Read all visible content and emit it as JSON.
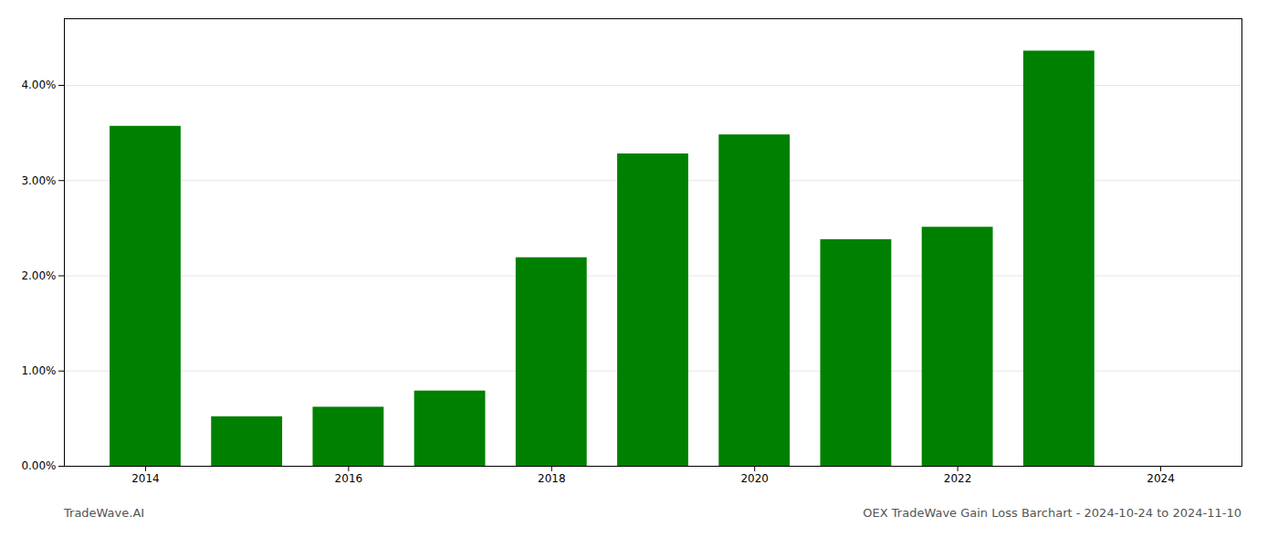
{
  "chart_data": {
    "type": "bar",
    "title": "OEX TradeWave Gain Loss Barchart - 2024-10-24 to 2024-11-10",
    "annotations": [
      "TradeWave.AI"
    ],
    "x": [
      2014,
      2015,
      2016,
      2017,
      2018,
      2019,
      2020,
      2021,
      2022,
      2023
    ],
    "values": [
      0.0357,
      0.0052,
      0.0062,
      0.0079,
      0.0219,
      0.0328,
      0.0348,
      0.0238,
      0.0251,
      0.0436
    ],
    "color": "#008000",
    "xlim": [
      2013.2,
      2024.8
    ],
    "xticks": [
      2014,
      2016,
      2018,
      2020,
      2022,
      2024
    ],
    "ylim": [
      0,
      0.047
    ],
    "yticks": [
      {
        "value": 0.0,
        "label": "0.00%"
      },
      {
        "value": 0.01,
        "label": "1.00%"
      },
      {
        "value": 0.02,
        "label": "2.00%"
      },
      {
        "value": 0.03,
        "label": "3.00%"
      },
      {
        "value": 0.04,
        "label": "4.00%"
      }
    ],
    "grid": true
  }
}
